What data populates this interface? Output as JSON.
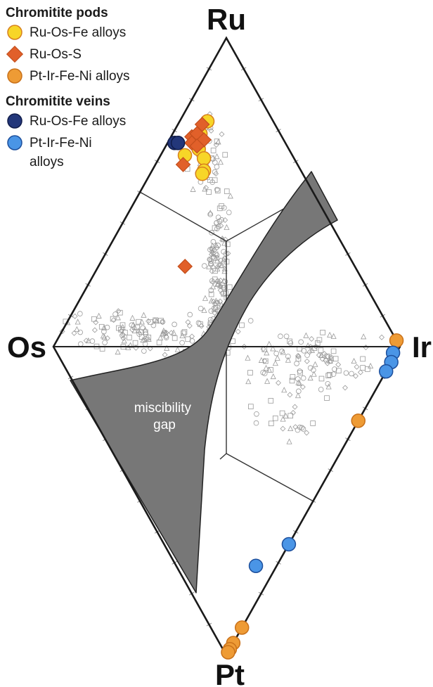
{
  "chart_data": {
    "type": "scatter",
    "diagram": "ternary-diamond",
    "vertices": {
      "top": "Ru",
      "left": "Os",
      "right": "Ir",
      "bottom": "Pt"
    },
    "gap_label": "miscibility gap",
    "legend": {
      "groups": [
        {
          "heading": "Chromitite pods",
          "items": [
            {
              "label": "Ru-Os-Fe alloys",
              "marker": "circle",
              "color": "#f7d628",
              "edge": "#d7801e"
            },
            {
              "label": "Ru-Os-S",
              "marker": "diamond",
              "color": "#e1602a",
              "edge": "#c44f1d"
            },
            {
              "label": "Pt-Ir-Fe-Ni alloys",
              "marker": "circle",
              "color": "#ee9b35",
              "edge": "#c9711a"
            }
          ]
        },
        {
          "heading": "Chromitite veins",
          "items": [
            {
              "label": "Ru-Os-Fe alloys",
              "marker": "circle",
              "color": "#23377a",
              "edge": "#101c4a"
            },
            {
              "label": "Pt-Ir-Fe-Ni alloys",
              "marker": "circle",
              "color": "#4a95e6",
              "edge": "#1d4f9c"
            }
          ]
        }
      ]
    },
    "series": [
      {
        "name": "Chromitite pods Ru-Os-Fe alloys",
        "marker": "circle",
        "color": "#f7d628",
        "edge": "#d7801e",
        "points": [
          [
            0.73,
            0.19,
            0.08,
            0
          ],
          [
            0.62,
            0.31,
            0.07,
            0
          ],
          [
            0.64,
            0.26,
            0.1,
            0
          ],
          [
            0.61,
            0.26,
            0.13,
            0
          ],
          [
            0.57,
            0.28,
            0.15,
            0
          ],
          [
            0.56,
            0.29,
            0.15,
            0
          ],
          [
            0.69,
            0.23,
            0.08,
            0
          ]
        ]
      },
      {
        "name": "Chromitite pods Ru-Os-S",
        "marker": "diamond",
        "color": "#e1602a",
        "edge": "#c44f1d",
        "points": [
          [
            0.72,
            0.21,
            0.07,
            0
          ],
          [
            0.68,
            0.26,
            0.06,
            0
          ],
          [
            0.66,
            0.27,
            0.07,
            0
          ],
          [
            0.69,
            0.24,
            0.07,
            0
          ],
          [
            0.67,
            0.23,
            0.1,
            0
          ],
          [
            0.65,
            0.26,
            0.09,
            0
          ],
          [
            0.59,
            0.33,
            0.08,
            0
          ],
          [
            0.26,
            0.49,
            0.25,
            0
          ]
        ]
      },
      {
        "name": "Chromitite pods Pt-Ir-Fe-Ni alloys",
        "marker": "circle",
        "color": "#ee9b35",
        "edge": "#c9711a",
        "points": [
          [
            0.02,
            0,
            0.98,
            0
          ],
          [
            0,
            0,
            0.76,
            0.24
          ],
          [
            0,
            0,
            0.09,
            0.91
          ],
          [
            0,
            0,
            0.04,
            0.96
          ],
          [
            0,
            0,
            0.02,
            0.98
          ],
          [
            0,
            0,
            0.01,
            0.99
          ]
        ]
      },
      {
        "name": "Chromitite veins Ru-Os-Fe alloys",
        "marker": "circle",
        "color": "#23377a",
        "edge": "#101c4a",
        "points": [
          [
            0.66,
            0.32,
            0.02,
            0
          ],
          [
            0.66,
            0.31,
            0.03,
            0
          ]
        ]
      },
      {
        "name": "Chromitite veins Pt-Ir-Fe-Ni alloys",
        "marker": "circle",
        "color": "#4a95e6",
        "edge": "#1d4f9c",
        "points": [
          [
            0,
            0.01,
            0.97,
            0.02
          ],
          [
            0,
            0,
            0.95,
            0.05
          ],
          [
            0,
            0,
            0.92,
            0.08
          ],
          [
            0,
            0,
            0.36,
            0.64
          ],
          [
            0,
            0.06,
            0.23,
            0.71
          ]
        ]
      }
    ]
  }
}
